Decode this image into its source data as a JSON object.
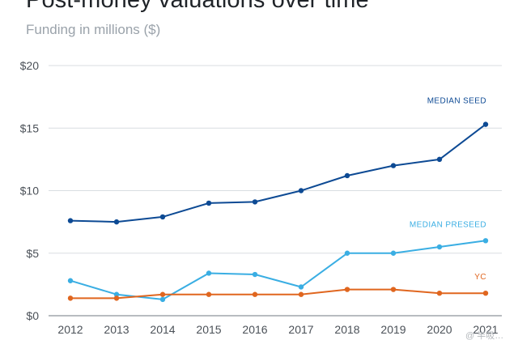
{
  "title": "Post-money valuations over time",
  "subtitle": "Funding in millions ($)",
  "watermark": "@ 半吸…",
  "chart_data": {
    "type": "line",
    "title": "Post-money valuations over time",
    "subtitle": "Funding in millions ($)",
    "x": [
      "2012",
      "2013",
      "2014",
      "2015",
      "2016",
      "2017",
      "2018",
      "2019",
      "2020",
      "2021"
    ],
    "ylim": [
      0,
      20
    ],
    "yticks": [
      0,
      5,
      10,
      15,
      20
    ],
    "ytick_labels": [
      "$0",
      "$5",
      "$10",
      "$15",
      "$20"
    ],
    "grid": true,
    "legend": "inline labels at right end of each series",
    "series": [
      {
        "name": "MEDIAN SEED",
        "color": "#0d4a94",
        "values": [
          7.6,
          7.5,
          7.9,
          9.0,
          9.1,
          10.0,
          11.2,
          12.0,
          12.5,
          15.3
        ]
      },
      {
        "name": "MEDIAN PRESEED",
        "color": "#3aaee3",
        "values": [
          2.8,
          1.7,
          1.3,
          3.4,
          3.3,
          2.3,
          5.0,
          5.0,
          5.5,
          6.0
        ]
      },
      {
        "name": "YC",
        "color": "#e0661f",
        "values": [
          1.4,
          1.4,
          1.7,
          1.7,
          1.7,
          1.7,
          2.1,
          2.1,
          1.8,
          1.8
        ]
      }
    ]
  }
}
